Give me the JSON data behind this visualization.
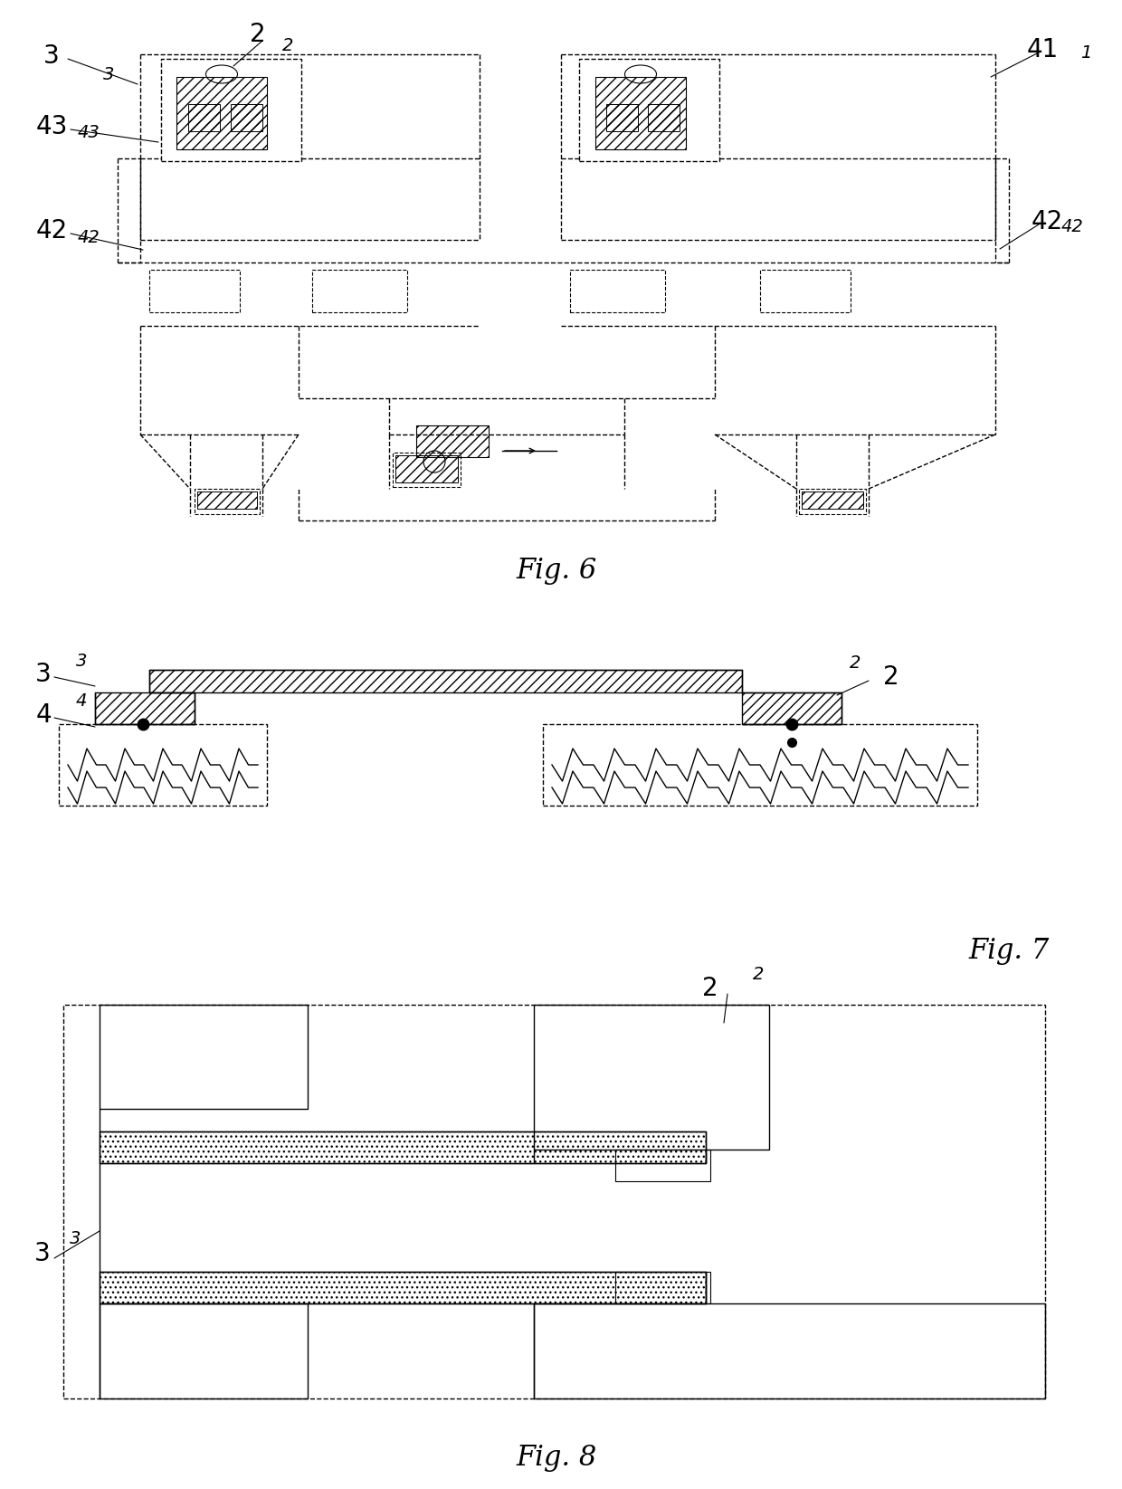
{
  "bg_color": "#ffffff",
  "line_color": "#000000",
  "fig6_label": "Fig. 6",
  "fig7_label": "Fig. 7",
  "fig8_label": "Fig. 8"
}
